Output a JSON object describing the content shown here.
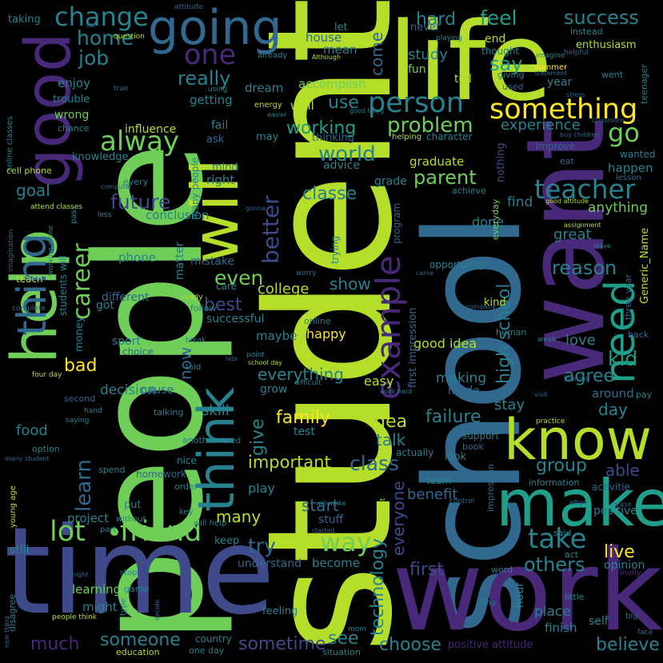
{
  "title": "",
  "palette": {
    "yellowgreen": "#b5de2b",
    "green": "#6ece58",
    "teal": "#1f9e89",
    "tealblue": "#26828e",
    "blue": "#31688e",
    "indigo": "#3e4a89",
    "purple": "#482878",
    "darkpurple": "#440154",
    "yellow": "#fde725",
    "lightgreen": "#35b779"
  },
  "words": {
    "student": "student",
    "people": "people",
    "school": "school",
    "life": "life",
    "time": "time",
    "work": "work",
    "want": "want",
    "good": "good",
    "make": "make",
    "know": "know",
    "help": "help",
    "thing": "thing",
    "will": "will",
    "going": "going",
    "think": "think",
    "need": "need",
    "example": "example",
    "something": "something",
    "person": "person",
    "teacher": "teacher",
    "change": "change",
    "home": "home",
    "one": "one",
    "job": "job",
    "alway": "alway",
    "friend": "friend",
    "lot": "lot",
    "way": "way",
    "take": "take",
    "career": "career",
    "learn": "learn",
    "future": "future",
    "working": "working",
    "hard": "hard",
    "feel": "feel",
    "success": "success",
    "say": "say",
    "really": "really",
    "problem": "problem",
    "world": "world",
    "go": "go",
    "parent": "parent",
    "better": "better",
    "classe": "classe",
    "high_school": "high school",
    "kid": "kid",
    "agree": "agree",
    "reason": "reason",
    "live": "live",
    "others": "others",
    "technology": "technology",
    "everyone": "everyone",
    "first": "first",
    "choose": "choose",
    "believe": "believe",
    "sometime": "sometime",
    "someone": "someone",
    "much": "much",
    "see": "see",
    "family": "family",
    "important": "important",
    "class": "class",
    "group": "group",
    "able": "able",
    "idea": "idea",
    "failure": "failure",
    "talk": "talk",
    "try": "try",
    "many": "many",
    "even": "even",
    "best": "best",
    "give": "give",
    "bad": "bad",
    "day": "day",
    "goal": "goal",
    "start": "start",
    "benefit": "benefit",
    "play": "play",
    "now": "now",
    "everything": "everything",
    "experience": "experience",
    "use": "use",
    "study": "study",
    "come": "come",
    "show": "show",
    "college": "college",
    "mistake": "mistake",
    "phone": "phone",
    "conclusion": "conclusion",
    "successful": "successful",
    "happy": "happy",
    "maybe": "maybe",
    "decision": "decision",
    "making": "making",
    "cause": "cause",
    "grow": "grow",
    "skill": "skill",
    "food": "food",
    "test": "test",
    "stuff": "stuff",
    "keep": "keep",
    "project": "project",
    "understand": "understand",
    "become": "become",
    "might": "might",
    "learning": "learning",
    "feeling": "feeling",
    "place": "place",
    "finish": "finish",
    "self": "self",
    "hour": "hour",
    "positive": "positive",
    "opinion": "opinion",
    "Generic_Name": "Generic_Name",
    "great": "great",
    "anything": "anything",
    "happen": "happen",
    "find": "find",
    "done": "done",
    "dont": "dont",
    "grade": "grade",
    "graduate": "graduate",
    "advice": "advice",
    "thinking": "thinking",
    "dream": "dream",
    "well": "well",
    "accomplish": "accomplish",
    "fun": "fun",
    "tell": "tell",
    "year": "year",
    "used": "used",
    "end": "end",
    "thought": "thought",
    "giving": "giving",
    "mean": "mean",
    "house": "house",
    "let": "let",
    "never": "never",
    "taking": "taking",
    "enjoy": "enjoy",
    "trouble": "trouble",
    "wrong": "wrong",
    "chance": "chance",
    "influence": "influence",
    "getting": "getting",
    "knowledge": "knowledge",
    "right": "right",
    "mind": "mind",
    "ask": "ask",
    "fail": "fail",
    "may": "may",
    "many_people": "many people",
    "matter": "matter",
    "different": "different",
    "money": "money",
    "got": "got",
    "sport": "sport",
    "choice": "choice",
    "students_will": "students will",
    "online_classes": "online classes",
    "cell_phone": "cell phone",
    "every": "every",
    "teach": "teach",
    "imagination": "imagination",
    "still": "still",
    "young_age": "young age",
    "option": "option",
    "spend": "spend",
    "nice": "nice",
    "homework": "homework",
    "order": "order",
    "put": "put",
    "key": "key",
    "without": "without",
    "part": "part",
    "will_help": "will help",
    "stop": "stop",
    "game": "game",
    "type": "type",
    "education": "education",
    "one_day": "one day",
    "country": "country",
    "situation": "situation",
    "mom": "mom",
    "long": "long",
    "little": "little",
    "big": "big",
    "face": "face",
    "word": "word",
    "act": "act",
    "said": "said",
    "human": "human",
    "love": "love",
    "stay": "stay",
    "made": "made",
    "easy": "easy",
    "good_idea": "good idea",
    "first_impression": "first impression",
    "support": "support",
    "book": "book",
    "look": "look",
    "actually": "actually",
    "information": "information",
    "team": "team",
    "activitie": "activitie",
    "three_year": "three year",
    "kind": "kind",
    "around": "around",
    "pay": "pay",
    "back": "back",
    "opportunity": "opportunity",
    "impression": "impression",
    "positive_attitude": "positive attitude",
    "online": "online",
    "trying": "trying",
    "program": "program",
    "nothing": "nothing",
    "everyday": "everyday",
    "bring": "bring",
    "achieve": "achieve",
    "improve": "improve",
    "eat": "eat",
    "wanted": "wanted",
    "lesson": "lesson",
    "character": "character",
    "helping": "helping",
    "went": "went",
    "teenager": "teenager",
    "enthusiasm": "enthusiasm",
    "instead": "instead",
    "summer": "summer",
    "helpful": "helpful",
    "imagine": "imagine",
    "later": "later",
    "playing": "playing",
    "Although": "Although",
    "already": "already",
    "question": "question",
    "attitude": "attitude",
    "car": "car",
    "energy": "energy",
    "easier": "easier",
    "good_thing": "good thing",
    "true": "true",
    "using": "using",
    "attend_classes": "attend classes",
    "less": "less",
    "pass": "pass",
    "working_alone": "working alone",
    "worry": "worry",
    "ready": "ready",
    "follow": "follow",
    "complete": "complete",
    "care": "care",
    "point": "point",
    "school_day": "school day",
    "break": "break",
    "told": "told",
    "late": "late",
    "four_day": "four day",
    "second": "second",
    "difficult": "difficult",
    "work_hard": "work hard",
    "visit": "visit",
    "looking": "looking",
    "week": "week",
    "saying": "saying",
    "talking": "talking",
    "hand": "hand",
    "another": "another",
    "tired": "tired",
    "many_student": "many student",
    "practice": "practice",
    "course": "course",
    "effort": "effort",
    "control": "control",
    "rest": "rest",
    "will_make": "will make",
    "started": "started",
    "night": "night",
    "decide": "decide",
    "people_think": "people think",
    "disagree": "disagree",
    "new_thing": "new thing",
    "Finally": "Finally",
    "classroom": "classroom",
    "stress": "stress",
    "statement": "statement",
    "good_attitude": "good attitude",
    "assignment": "assignment",
    "leave": "leave",
    "company": "company",
    "gonna": "gonna",
    "came": "came",
    "computer": "computer",
    "buy_children": "buy children"
  }
}
